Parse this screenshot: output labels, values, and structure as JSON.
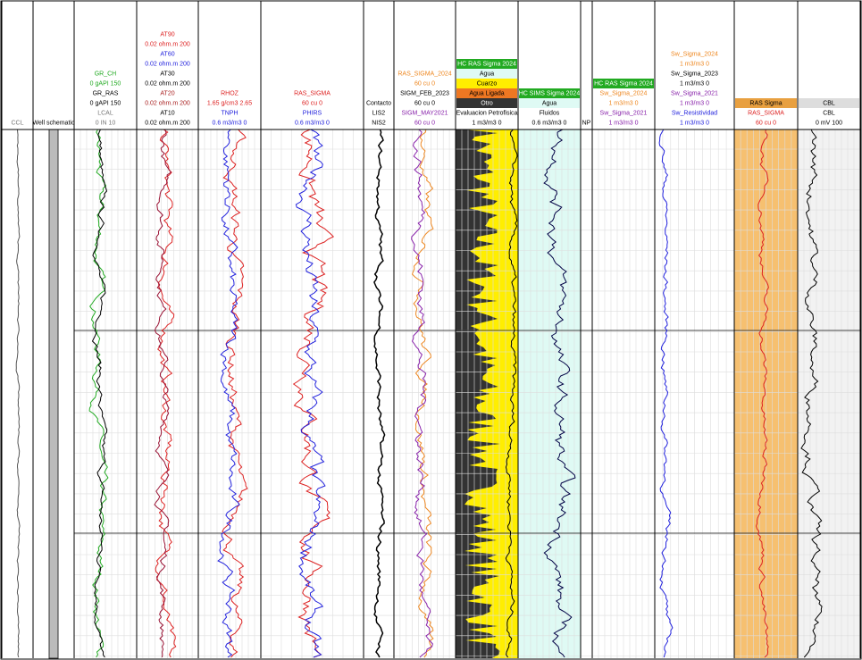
{
  "tracks": [
    {
      "headers": [
        {
          "text": "CCL",
          "color": "#777777"
        }
      ]
    },
    {
      "headers": [
        {
          "text": "Well schematic",
          "color": "#000000"
        }
      ]
    },
    {
      "headers": [
        {
          "text": "GR_CH",
          "color": "#22aa22"
        },
        {
          "text": "0 gAPI 150",
          "color": "#22aa22"
        },
        {
          "text": "GR_RAS",
          "color": "#000000"
        },
        {
          "text": "0 gAPI 150",
          "color": "#000000"
        },
        {
          "text": "LCAL",
          "color": "#777777"
        },
        {
          "text": "0 IN 10",
          "color": "#777777"
        }
      ]
    },
    {
      "headers": [
        {
          "text": "AT90",
          "color": "#dd2222"
        },
        {
          "text": "0.02 ohm.m 200",
          "color": "#dd2222"
        },
        {
          "text": "AT60",
          "color": "#2222dd"
        },
        {
          "text": "0.02 ohm.m 200",
          "color": "#2222dd"
        },
        {
          "text": "AT30",
          "color": "#000000"
        },
        {
          "text": "0.02 ohm.m 200",
          "color": "#000000"
        },
        {
          "text": "AT20",
          "color": "#aa2222"
        },
        {
          "text": "0.02 ohm.m 200",
          "color": "#aa2222"
        },
        {
          "text": "AT10",
          "color": "#000000"
        },
        {
          "text": "0.02 ohm.m 200",
          "color": "#000000"
        }
      ]
    },
    {
      "headers": [
        {
          "text": "RHOZ",
          "color": "#dd2222"
        },
        {
          "text": "1.65 g/cm3 2.65",
          "color": "#dd2222"
        },
        {
          "text": "TNPH",
          "color": "#2222dd"
        },
        {
          "text": "0.6 m3/m3 0",
          "color": "#2222dd"
        }
      ]
    },
    {
      "headers": [
        {
          "text": "RAS_SIGMA",
          "color": "#dd2222"
        },
        {
          "text": "60 cu 0",
          "color": "#dd2222"
        },
        {
          "text": "PHIRS",
          "color": "#2222dd"
        },
        {
          "text": "0.6 m3/m3 0",
          "color": "#2222dd"
        }
      ]
    },
    {
      "headers": [
        {
          "text": "Contacto",
          "color": "#000000"
        },
        {
          "text": "LIS2",
          "color": "#000000"
        },
        {
          "text": "NIS2",
          "color": "#000000"
        }
      ]
    },
    {
      "headers": [
        {
          "text": "RAS_SIGMA_2024",
          "color": "#ee8822"
        },
        {
          "text": "60 cu 0",
          "color": "#ee8822"
        },
        {
          "text": "SIGM_FEB_2023",
          "color": "#000000"
        },
        {
          "text": "60 cu 0",
          "color": "#000000"
        },
        {
          "text": "SIGM_MAY2021",
          "color": "#8822aa"
        },
        {
          "text": "60 cu 0",
          "color": "#8822aa"
        }
      ]
    },
    {
      "headers": [
        {
          "text": "HC RAS Sigma 2024",
          "color": "#ffffff",
          "fill": "#22aa22"
        },
        {
          "text": "Agua",
          "color": "#000000",
          "fill": "#dffaf4"
        },
        {
          "text": "Cuarzo",
          "color": "#000000",
          "fill": "#ffee00"
        },
        {
          "text": "Agua Ligada",
          "color": "#000000",
          "fill": "#ee7722"
        },
        {
          "text": "Otro",
          "color": "#ffffff",
          "fill": "#333333"
        },
        {
          "text": "Evaluacion Petrofisica",
          "color": "#000000"
        },
        {
          "text": "1 m3/m3 0",
          "color": "#000000"
        }
      ]
    },
    {
      "headers": [
        {
          "text": "HC SIMS Sigma 2024",
          "color": "#ffffff",
          "fill": "#22aa22"
        },
        {
          "text": "Agua",
          "color": "#000000",
          "fill": "#dffaf4"
        },
        {
          "text": "Fluidos",
          "color": "#000000"
        },
        {
          "text": "0.6 m3/m3 0",
          "color": "#000000"
        }
      ]
    },
    {
      "headers": [
        {
          "text": "NP",
          "color": "#000000"
        }
      ]
    },
    {
      "headers": [
        {
          "text": "HC RAS Sigma 2024",
          "color": "#ffffff",
          "fill": "#22aa22"
        },
        {
          "text": "Sw_Sigma_2024",
          "color": "#ee8822"
        },
        {
          "text": "1 m3/m3 0",
          "color": "#ee8822"
        },
        {
          "text": "Sw_Sigma_2021",
          "color": "#8822aa"
        },
        {
          "text": "1 m3/m3 0",
          "color": "#8822aa"
        }
      ]
    },
    {
      "headers": [
        {
          "text": "Sw_Sigma_2024",
          "color": "#ee8822"
        },
        {
          "text": "1 m3/m3 0",
          "color": "#ee8822"
        },
        {
          "text": "Sw_Sigma_2023",
          "color": "#000000"
        },
        {
          "text": "1 m3/m3 0",
          "color": "#000000"
        },
        {
          "text": "Sw_Sigma_2021",
          "color": "#8822aa"
        },
        {
          "text": "1 m3/m3 0",
          "color": "#8822aa"
        },
        {
          "text": "Sw_Resistividad",
          "color": "#2222dd"
        },
        {
          "text": "1 m3/m3 0",
          "color": "#2222dd"
        }
      ]
    },
    {
      "headers": [
        {
          "text": "RAS Sigma",
          "color": "#000000",
          "fill": "#e8a040"
        },
        {
          "text": "RAS_SIGMA",
          "color": "#dd2222"
        },
        {
          "text": "60 cu 0",
          "color": "#dd2222"
        }
      ]
    },
    {
      "headers": [
        {
          "text": "CBL",
          "color": "#000000",
          "fill": "#dddddd"
        },
        {
          "text": "CBL",
          "color": "#000000"
        },
        {
          "text": "0 mV 100",
          "color": "#000000"
        }
      ]
    }
  ]
}
